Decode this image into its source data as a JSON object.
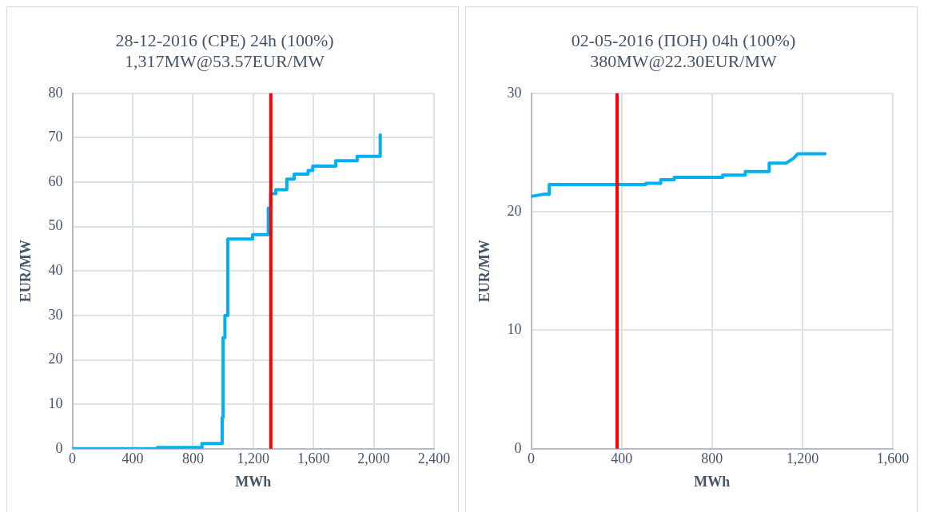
{
  "chart_data": [
    {
      "type": "line",
      "title": "28-12-2016 (CPE) 24h (100%)",
      "subtitle": "1,317MW@53.57EUR/MW",
      "xlabel": "MWh",
      "ylabel": "EUR/MW",
      "xlim": [
        0,
        2400
      ],
      "xticks": [
        0,
        400,
        800,
        {
          "value": 1200,
          "label": "1,200"
        },
        {
          "value": 1600,
          "label": "1,600"
        },
        {
          "value": 2000,
          "label": "2,000"
        },
        {
          "value": 2400,
          "label": "2,400"
        }
      ],
      "ylim": [
        0,
        80
      ],
      "yticks": [
        0,
        10,
        20,
        30,
        40,
        50,
        60,
        70,
        80
      ],
      "grid": true,
      "legend": false,
      "marker": "none",
      "series": [
        {
          "color": "#00b0f0",
          "x": [
            0,
            564,
            564,
            860,
            860,
            994,
            994,
            1000,
            1000,
            1012,
            1012,
            1031,
            1031,
            1196,
            1196,
            1300,
            1300,
            1315,
            1315,
            1350,
            1350,
            1423,
            1423,
            1472,
            1472,
            1564,
            1564,
            1595,
            1595,
            1748,
            1748,
            1890,
            1890,
            1994,
            1994,
            2043,
            2043
          ],
          "values": [
            0,
            0,
            0.3,
            0.3,
            1.2,
            1.2,
            7,
            7,
            25,
            25,
            30,
            30,
            47.2,
            47.2,
            48.2,
            48.2,
            54.1,
            54.1,
            57.4,
            57.4,
            58.3,
            58.3,
            60.7,
            60.7,
            61.8,
            61.8,
            62.6,
            62.6,
            63.6,
            63.6,
            64.8,
            64.8,
            65.8,
            65.8,
            65.8,
            65.8,
            70.6
          ]
        }
      ],
      "ref_lines": [
        {
          "axis": "x",
          "value": 1317,
          "color": "#ff0000"
        }
      ]
    },
    {
      "type": "line",
      "title": "02-05-2016 (ПОН) 04h (100%)",
      "subtitle": "380MW@22.30EUR/MW",
      "xlabel": "MWh",
      "ylabel": "EUR/MW",
      "xlim": [
        0,
        1600
      ],
      "xticks": [
        0,
        400,
        800,
        {
          "value": 1200,
          "label": "1,200"
        },
        {
          "value": 1600,
          "label": "1,600"
        }
      ],
      "ylim": [
        0,
        30
      ],
      "yticks": [
        0,
        10,
        20,
        30
      ],
      "grid": true,
      "legend": false,
      "marker": "none",
      "series": [
        {
          "color": "#00b0f0",
          "x": [
            0,
            60,
            60,
            80,
            80,
            507,
            507,
            573,
            573,
            633,
            633,
            847,
            847,
            947,
            947,
            1053,
            1053,
            1127,
            1127,
            1160,
            1180,
            1300
          ],
          "values": [
            21.3,
            21.5,
            21.5,
            21.5,
            22.3,
            22.3,
            22.4,
            22.4,
            22.7,
            22.7,
            22.9,
            22.9,
            23.1,
            23.1,
            23.4,
            23.4,
            24.1,
            24.1,
            24.1,
            24.5,
            24.9,
            24.9
          ]
        }
      ],
      "ref_lines": [
        {
          "axis": "x",
          "value": 380,
          "color": "#ff0000"
        }
      ]
    }
  ]
}
